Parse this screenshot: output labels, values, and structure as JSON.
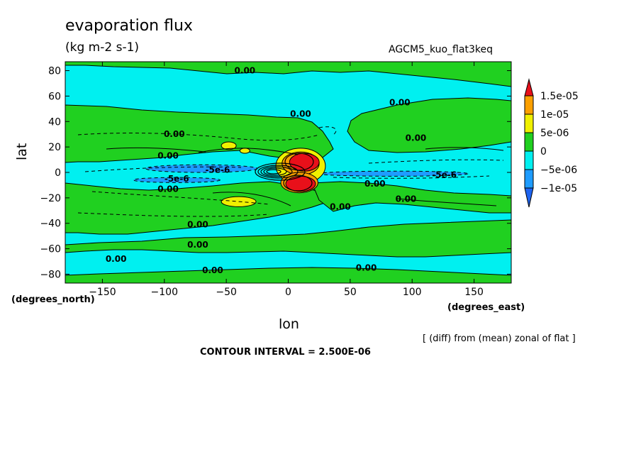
{
  "chart_data": {
    "type": "heatmap",
    "title": "evaporation flux",
    "units": "(kg m-2 s-1)",
    "run_label": "AGCM5_kuo_flat3keq",
    "xlabel": "lon",
    "ylabel": "lat",
    "x_unit_label": "(degrees_east)",
    "y_unit_label": "(degrees_north)",
    "xlim": [
      -180,
      180
    ],
    "ylim": [
      -87,
      87
    ],
    "xticks": [
      -150,
      -100,
      -50,
      0,
      50,
      100,
      150
    ],
    "xtick_labels": [
      "−150",
      "−100",
      "−50",
      "0",
      "50",
      "100",
      "150"
    ],
    "yticks": [
      -80,
      -60,
      -40,
      -20,
      0,
      20,
      40,
      60,
      80
    ],
    "ytick_labels": [
      "−80",
      "−60",
      "−40",
      "−20",
      "0",
      "20",
      "40",
      "60",
      "80"
    ],
    "note": "[ (diff) from (mean) zonal of flat ]",
    "contour_interval": "CONTOUR INTERVAL = 2.500E-06",
    "colorbar": {
      "labels": [
        "1.5e-05",
        "1e-05",
        "5e-06",
        "0",
        "−5e-06",
        "−1e-05"
      ],
      "levels": [
        1.5e-05,
        1e-05,
        5e-06,
        0,
        -5e-06,
        -1e-05
      ],
      "colors": [
        "#e8101a",
        "#fca000",
        "#f0f000",
        "#20d020",
        "#00f0f0",
        "#1e9cff",
        "#1e64f0"
      ]
    },
    "contour_labels": [
      {
        "text": "0.00",
        "lon": -35,
        "lat": 80
      },
      {
        "text": "0.00",
        "lon": 10,
        "lat": 46
      },
      {
        "text": "0.00",
        "lon": 90,
        "lat": 55
      },
      {
        "text": "0.00",
        "lon": -92,
        "lat": 30
      },
      {
        "text": "0.00",
        "lon": 103,
        "lat": 27
      },
      {
        "text": "0.00",
        "lon": -97,
        "lat": 13
      },
      {
        "text": "-5e-6",
        "lon": -57,
        "lat": 2
      },
      {
        "text": "-5e-6",
        "lon": -90,
        "lat": -5
      },
      {
        "text": "-5e-6",
        "lon": 126,
        "lat": -2
      },
      {
        "text": "0.00",
        "lon": -97,
        "lat": -13
      },
      {
        "text": "0.00",
        "lon": 70,
        "lat": -9
      },
      {
        "text": "0.00",
        "lon": 95,
        "lat": -21
      },
      {
        "text": "0.00",
        "lon": 42,
        "lat": -27
      },
      {
        "text": "0.00",
        "lon": -73,
        "lat": -41
      },
      {
        "text": "0.00",
        "lon": -73,
        "lat": -57
      },
      {
        "text": "0.00",
        "lon": -139,
        "lat": -68
      },
      {
        "text": "0.00",
        "lon": -61,
        "lat": -77
      },
      {
        "text": "0.00",
        "lon": 63,
        "lat": -75
      }
    ],
    "regions": [
      {
        "level": "neg5",
        "shapes": [
          {
            "lon": -70,
            "lat": 3,
            "rlon": 45,
            "rlat": 3
          },
          {
            "lon": -90,
            "lat": -6,
            "rlon": 35,
            "rlat": 2
          },
          {
            "lon": 85,
            "lat": -1,
            "rlon": 60,
            "rlat": 2
          }
        ]
      },
      {
        "level": "pos5",
        "shapes": [
          {
            "lon": -48,
            "lat": 21,
            "rlon": 6,
            "rlat": 3
          },
          {
            "lon": -35,
            "lat": 17,
            "rlon": 4,
            "rlat": 2
          },
          {
            "lon": -40,
            "lat": -23,
            "rlon": 14,
            "rlat": 4
          },
          {
            "lon": 10,
            "lat": 5,
            "rlon": 20,
            "rlat": 14
          }
        ]
      },
      {
        "level": "pos10",
        "shapes": [
          {
            "lon": 10,
            "lat": 7,
            "rlon": 15,
            "rlat": 9
          },
          {
            "lon": 9,
            "lat": -8,
            "rlon": 15,
            "rlat": 8
          }
        ]
      },
      {
        "level": "pos15",
        "shapes": [
          {
            "lon": 13,
            "lat": 8,
            "rlon": 12,
            "rlat": 7
          },
          {
            "lon": 10,
            "lat": -9,
            "rlon": 12,
            "rlat": 6
          }
        ]
      }
    ]
  }
}
